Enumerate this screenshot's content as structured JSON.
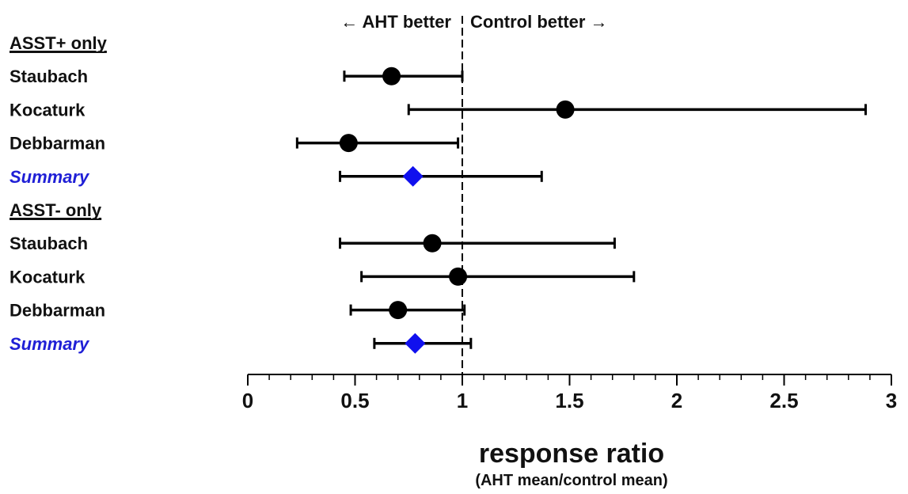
{
  "chart_data": {
    "type": "forest",
    "xlabel": "response ratio",
    "xlabel_sub": "(AHT mean/control mean)",
    "direction_left": "← AHT better",
    "direction_right": "Control better →",
    "xlim": [
      0,
      3
    ],
    "xticks": [
      "0",
      "0.5",
      "1",
      "1.5",
      "2",
      "2.5",
      "3"
    ],
    "xtick_values": [
      0,
      0.5,
      1,
      1.5,
      2,
      2.5,
      3
    ],
    "minor_tick_step": 0.1,
    "reference_line": 1,
    "colors": {
      "study": "#000000",
      "summary": "#1010ee",
      "summary_label": "#1f1fd6"
    },
    "groups": [
      {
        "label": "ASST+ only",
        "rows": [
          {
            "label": "Staubach",
            "estimate": 0.67,
            "lower": 0.45,
            "upper": 1.0,
            "marker": "circle"
          },
          {
            "label": "Kocaturk",
            "estimate": 1.48,
            "lower": 0.75,
            "upper": 2.88,
            "marker": "circle"
          },
          {
            "label": "Debbarman",
            "estimate": 0.47,
            "lower": 0.23,
            "upper": 0.98,
            "marker": "circle"
          },
          {
            "label": "Summary",
            "estimate": 0.77,
            "lower": 0.43,
            "upper": 1.37,
            "marker": "diamond",
            "summary": true
          }
        ]
      },
      {
        "label": "ASST- only",
        "rows": [
          {
            "label": "Staubach",
            "estimate": 0.86,
            "lower": 0.43,
            "upper": 1.71,
            "marker": "circle"
          },
          {
            "label": "Kocaturk",
            "estimate": 0.98,
            "lower": 0.53,
            "upper": 1.8,
            "marker": "circle"
          },
          {
            "label": "Debbarman",
            "estimate": 0.7,
            "lower": 0.48,
            "upper": 1.01,
            "marker": "circle"
          },
          {
            "label": "Summary",
            "estimate": 0.78,
            "lower": 0.59,
            "upper": 1.04,
            "marker": "diamond",
            "summary": true
          }
        ]
      }
    ]
  }
}
